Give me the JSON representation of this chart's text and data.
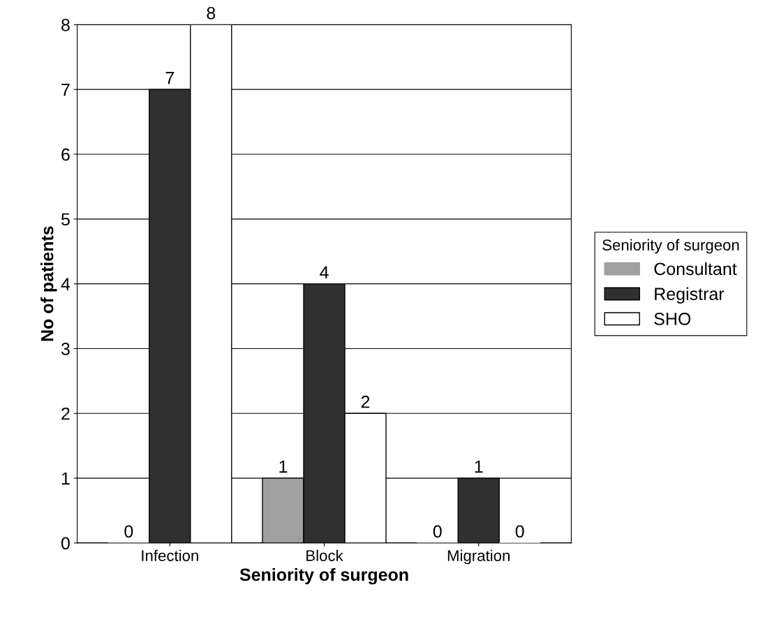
{
  "chart_data": {
    "type": "bar",
    "xlabel": "Seniority of surgeon",
    "ylabel": "No of patients",
    "legend_title": "Seniority of surgeon",
    "categories": [
      "Infection",
      "Block",
      "Migration"
    ],
    "series": [
      {
        "name": "Consultant",
        "color": "#a0a0a0",
        "values": [
          0,
          1,
          0
        ]
      },
      {
        "name": "Registrar",
        "color": "#303030",
        "values": [
          7,
          4,
          1
        ]
      },
      {
        "name": "SHO",
        "color": "#ffffff",
        "values": [
          8,
          2,
          0
        ]
      }
    ],
    "ylim": [
      0,
      8
    ],
    "yticks": [
      0,
      1,
      2,
      3,
      4,
      5,
      6,
      7,
      8
    ],
    "grid": "y",
    "legend": "right",
    "data_labels": true
  }
}
